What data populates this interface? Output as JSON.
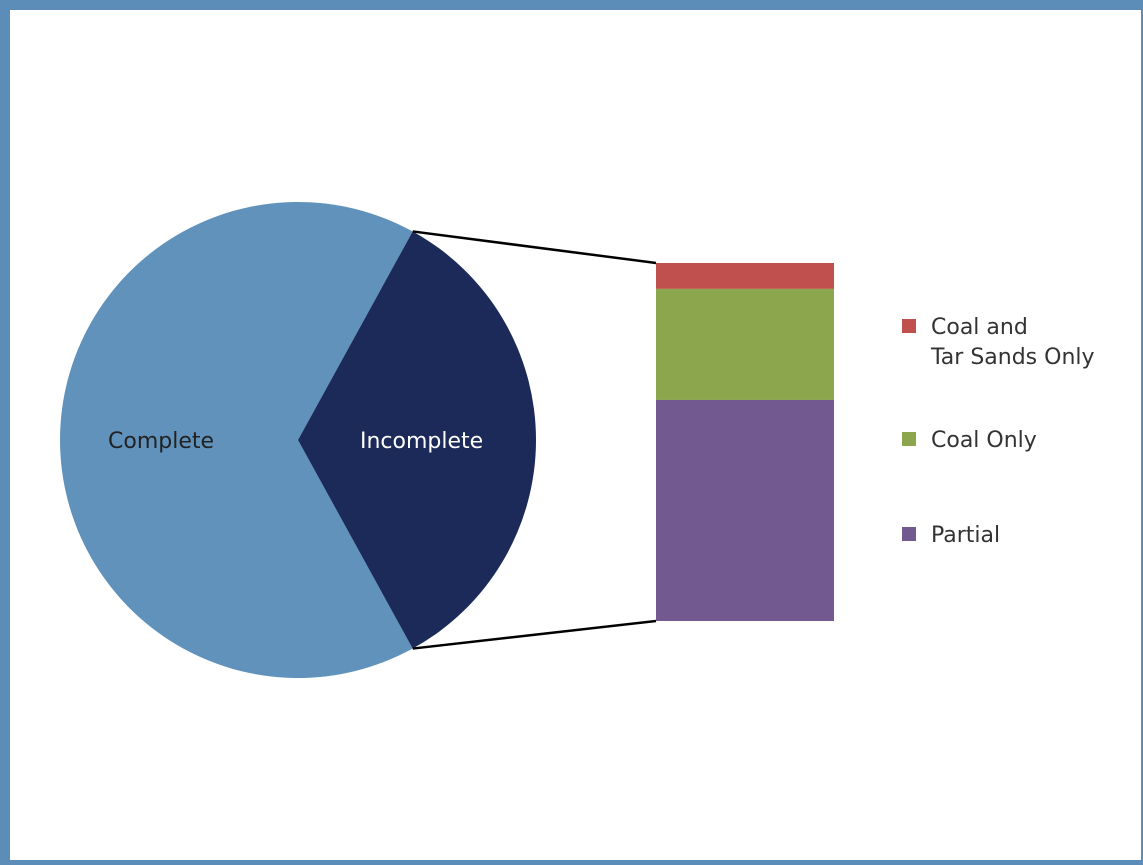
{
  "chart_data": {
    "type": "pie",
    "subtype": "bar-of-pie",
    "pie": [
      {
        "label": "Complete",
        "value": 66,
        "color": "#6092bb"
      },
      {
        "label": "Incomplete",
        "value": 34,
        "color": "#1b2a59"
      }
    ],
    "breakdown": {
      "of": "Incomplete",
      "segments": [
        {
          "label": "Coal and Tar Sands Only",
          "label_lines": [
            "Coal and",
            "Tar Sands Only"
          ],
          "value": 2.4,
          "color": "#c0504d"
        },
        {
          "label": "Coal Only",
          "label_lines": [
            "Coal Only"
          ],
          "value": 10.3,
          "color": "#8ba64d"
        },
        {
          "label": "Partial",
          "label_lines": [
            "Partial"
          ],
          "value": 20.5,
          "color": "#725a91"
        }
      ]
    },
    "legend_position": "right",
    "connector_color": "#000000",
    "frame_color": "#5b8db8"
  }
}
